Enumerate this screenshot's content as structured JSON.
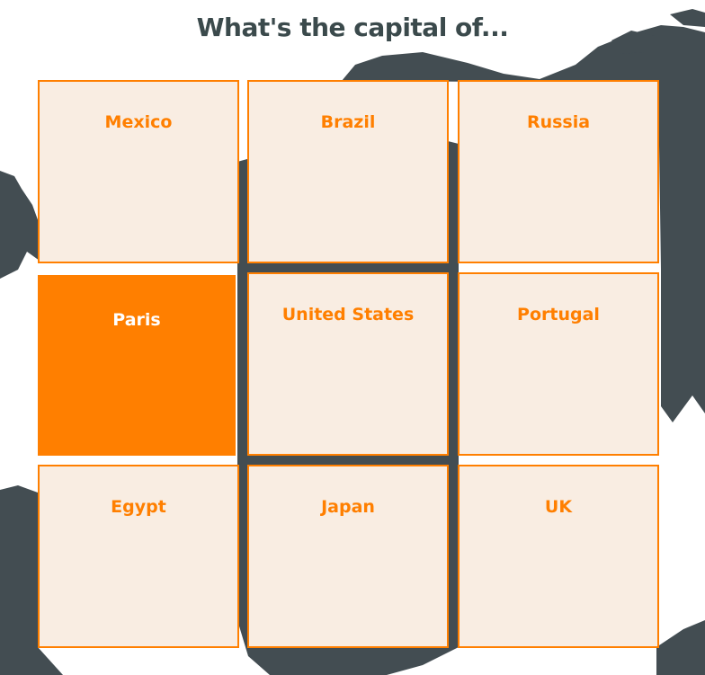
{
  "title": "What's the capital of...",
  "colors": {
    "accent": "#ff7f00",
    "card_background": "#f9ede2",
    "title_text": "#3b4a4c",
    "map": "#434d52",
    "selected_text": "#ffffff"
  },
  "map": {
    "icon": "world-map-silhouette"
  },
  "cards": [
    {
      "label": "Mexico",
      "selected": false
    },
    {
      "label": "Brazil",
      "selected": false
    },
    {
      "label": "Russia",
      "selected": false
    },
    {
      "label": "Paris",
      "selected": true
    },
    {
      "label": "United States",
      "selected": false
    },
    {
      "label": "Portugal",
      "selected": false
    },
    {
      "label": "Egypt",
      "selected": false
    },
    {
      "label": "Japan",
      "selected": false
    },
    {
      "label": "UK",
      "selected": false
    }
  ]
}
